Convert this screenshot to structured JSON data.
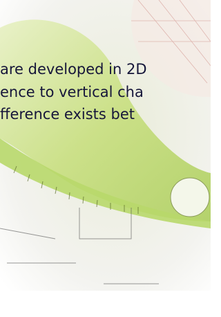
{
  "text_lines": [
    "are developed in 2D",
    "ence to vertical cha",
    "fference exists bet"
  ]
}
